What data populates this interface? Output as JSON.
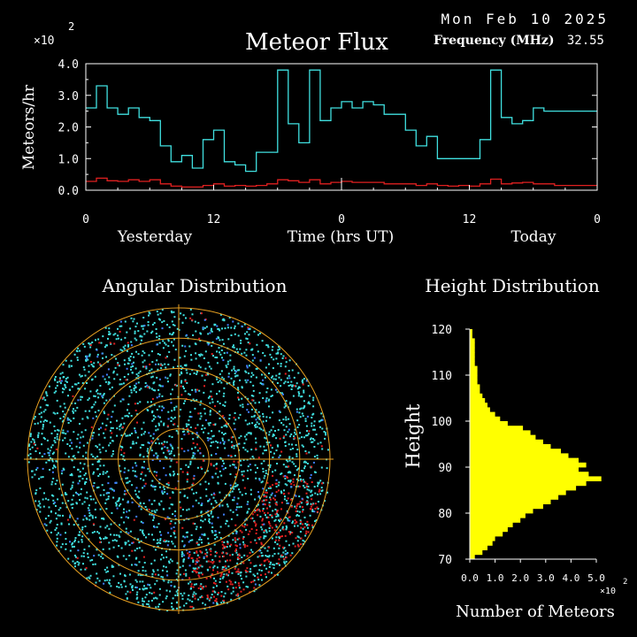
{
  "header": {
    "date": "Mon Feb 10 2025",
    "frequency_label": "Frequency (MHz)",
    "frequency_value": "32.55"
  },
  "chart_data": [
    {
      "type": "line",
      "title": "Meteor Flux",
      "ylabel": "Meteors/hr",
      "xlabel": "Time (hrs UT)",
      "y_multiplier": "×10",
      "y_exponent": "2",
      "ylim": [
        0,
        4.0
      ],
      "yticks": [
        "0.0",
        "1.0",
        "2.0",
        "3.0",
        "4.0"
      ],
      "xlim": [
        0,
        48
      ],
      "xticks": [
        {
          "x": 0,
          "label": "0"
        },
        {
          "x": 12,
          "label": "12"
        },
        {
          "x": 24,
          "label": "0"
        },
        {
          "x": 36,
          "label": "12"
        },
        {
          "x": 48,
          "label": "0"
        }
      ],
      "day_labels": [
        "Yesterday",
        "Today"
      ],
      "now_marker_x": 24,
      "series": [
        {
          "color": "#40e0e0",
          "step": true,
          "x": [
            0,
            1,
            2,
            3,
            4,
            5,
            6,
            7,
            8,
            9,
            10,
            11,
            12,
            13,
            14,
            15,
            16,
            17,
            18,
            19,
            20,
            21,
            22,
            23,
            24,
            25,
            26,
            27,
            28,
            29,
            30,
            31,
            32,
            33,
            34,
            35,
            36,
            37,
            38,
            39,
            40,
            41,
            42,
            43,
            44,
            45,
            46,
            47
          ],
          "values": [
            2.6,
            3.3,
            2.6,
            2.4,
            2.6,
            2.3,
            2.2,
            1.4,
            0.9,
            1.1,
            0.7,
            1.6,
            1.9,
            0.9,
            0.8,
            0.6,
            1.2,
            1.2,
            3.8,
            2.1,
            1.5,
            3.8,
            2.2,
            2.6,
            2.8,
            2.6,
            2.8,
            2.7,
            2.4,
            2.4,
            1.9,
            1.4,
            1.7,
            1.0,
            1.0,
            1.0,
            1.0,
            1.6,
            3.8,
            2.3,
            2.1,
            2.2,
            2.6,
            2.5,
            2.5,
            2.5,
            2.5,
            2.5
          ]
        },
        {
          "color": "#e02020",
          "step": true,
          "x": [
            0,
            1,
            2,
            3,
            4,
            5,
            6,
            7,
            8,
            9,
            10,
            11,
            12,
            13,
            14,
            15,
            16,
            17,
            18,
            19,
            20,
            21,
            22,
            23,
            24,
            25,
            26,
            27,
            28,
            29,
            30,
            31,
            32,
            33,
            34,
            35,
            36,
            37,
            38,
            39,
            40,
            41,
            42,
            43,
            44,
            45,
            46,
            47
          ],
          "values": [
            0.28,
            0.38,
            0.3,
            0.28,
            0.33,
            0.28,
            0.33,
            0.2,
            0.13,
            0.1,
            0.1,
            0.15,
            0.2,
            0.13,
            0.15,
            0.13,
            0.15,
            0.2,
            0.33,
            0.3,
            0.25,
            0.33,
            0.2,
            0.25,
            0.28,
            0.25,
            0.25,
            0.25,
            0.2,
            0.2,
            0.2,
            0.15,
            0.2,
            0.15,
            0.13,
            0.15,
            0.13,
            0.2,
            0.35,
            0.2,
            0.23,
            0.25,
            0.2,
            0.2,
            0.15,
            0.15,
            0.15,
            0.15
          ]
        }
      ]
    },
    {
      "type": "scatter",
      "title": "Angular Distribution",
      "projection": "polar sky map",
      "ring_count": 5,
      "point_colors": [
        "#40e0e0",
        "#e02020",
        "#4080ff"
      ],
      "grid_color": "#e8a020"
    },
    {
      "type": "bar",
      "orientation": "horizontal",
      "title": "Height Distribution",
      "ylabel": "Height",
      "xlabel": "Number of Meteors",
      "x_multiplier": "×10",
      "x_exponent": "2",
      "xlim": [
        0,
        5.0
      ],
      "xticks": [
        "0.0",
        "1.0",
        "2.0",
        "3.0",
        "4.0",
        "5.0"
      ],
      "ylim": [
        70,
        120
      ],
      "yticks": [
        "70",
        "80",
        "90",
        "100",
        "110",
        "120"
      ],
      "color": "#ffff00",
      "heights": [
        70,
        71,
        72,
        73,
        74,
        75,
        76,
        77,
        78,
        79,
        80,
        81,
        82,
        83,
        84,
        85,
        86,
        87,
        88,
        89,
        90,
        91,
        92,
        93,
        94,
        95,
        96,
        97,
        98,
        99,
        100,
        101,
        102,
        103,
        104,
        105,
        106,
        107,
        108,
        109,
        110,
        111,
        112,
        113,
        114,
        115,
        116,
        117,
        118,
        119
      ],
      "values": [
        0.2,
        0.5,
        0.7,
        0.9,
        1.0,
        1.3,
        1.5,
        1.7,
        2.0,
        2.2,
        2.5,
        2.9,
        3.2,
        3.5,
        3.8,
        4.2,
        4.6,
        5.2,
        4.7,
        4.3,
        4.6,
        4.3,
        3.9,
        3.6,
        3.2,
        2.9,
        2.6,
        2.4,
        2.1,
        1.5,
        1.2,
        1.0,
        0.8,
        0.7,
        0.6,
        0.5,
        0.4,
        0.4,
        0.3,
        0.3,
        0.3,
        0.3,
        0.2,
        0.2,
        0.2,
        0.2,
        0.2,
        0.2,
        0.1,
        0.1
      ]
    }
  ]
}
